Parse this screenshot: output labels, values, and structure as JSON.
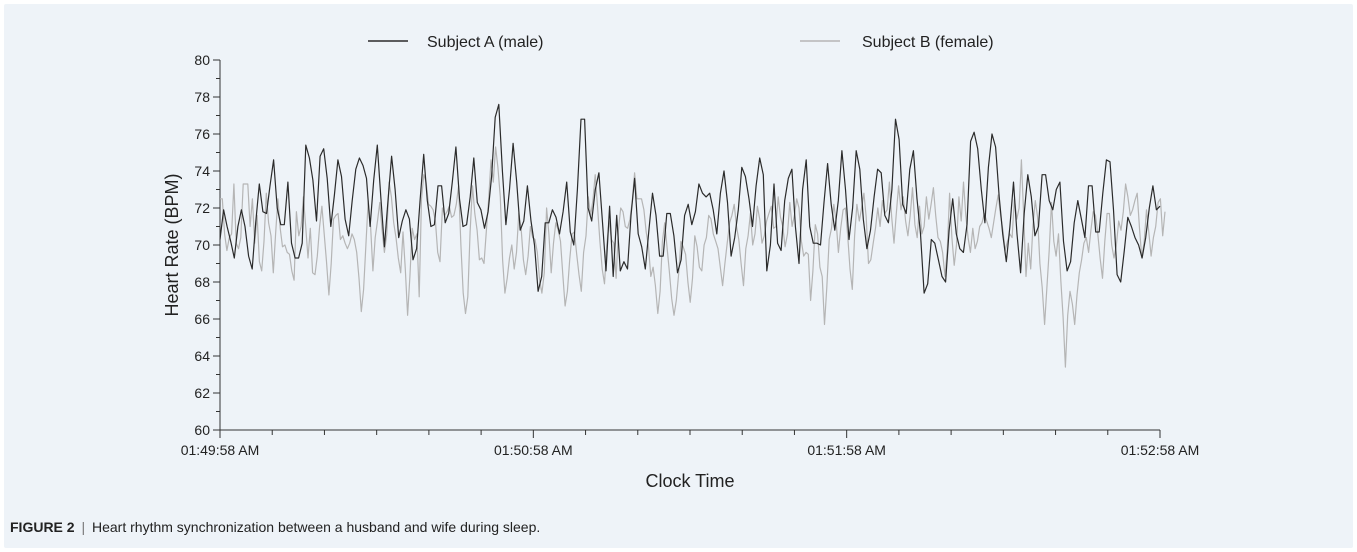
{
  "caption": {
    "label": "FIGURE 2",
    "separator": "|",
    "text": "Heart rhythm synchronization between a husband and wife during sleep."
  },
  "chart_data": {
    "type": "line",
    "title": "",
    "xlabel": "Clock Time",
    "ylabel": "Heart Rate (BPM)",
    "ylim": [
      60,
      80
    ],
    "yticks": [
      60,
      62,
      64,
      66,
      68,
      70,
      72,
      74,
      76,
      78,
      80
    ],
    "xlim_seconds_labels": [
      "01:49:58 AM",
      "01:52:58 AM"
    ],
    "xticks": [
      "01:49:58 AM",
      "01:50:58 AM",
      "01:51:58 AM",
      "01:52:58 AM"
    ],
    "grid": false,
    "legend": "top",
    "series": [
      {
        "name": "Subject A (male)",
        "color": "#2b2b2b",
        "values": [
          70.3,
          71.9,
          71.0,
          70.2,
          69.3,
          71.0,
          71.9,
          71.0,
          69.4,
          68.7,
          71.2,
          73.3,
          71.8,
          71.7,
          73.2,
          74.6,
          72.0,
          71.1,
          71.1,
          73.4,
          70.1,
          69.3,
          69.3,
          70.1,
          75.4,
          74.7,
          73.5,
          71.3,
          74.8,
          75.2,
          73.6,
          71.0,
          72.7,
          74.6,
          73.7,
          71.4,
          70.5,
          72.4,
          74.1,
          74.7,
          74.3,
          73.6,
          71.0,
          73.5,
          75.4,
          72.6,
          69.9,
          72.4,
          74.8,
          73.0,
          70.4,
          71.3,
          71.9,
          71.4,
          69.2,
          69.8,
          72.5,
          74.9,
          72.4,
          71.0,
          71.1,
          73.2,
          73.2,
          71.2,
          71.7,
          73.4,
          75.3,
          72.5,
          71.0,
          71.1,
          72.6,
          74.7,
          72.3,
          71.9,
          70.9,
          71.8,
          73.7,
          76.9,
          77.6,
          74.0,
          71.1,
          73.0,
          75.5,
          73.4,
          70.8,
          71.3,
          73.2,
          71.3,
          70.0,
          67.5,
          68.3,
          71.2,
          71.2,
          71.9,
          71.5,
          70.6,
          71.8,
          73.4,
          70.7,
          70.0,
          73.0,
          76.8,
          76.8,
          72.0,
          71.3,
          73.0,
          73.9,
          71.3,
          68.6,
          72.1,
          68.3,
          71.6,
          68.6,
          69.1,
          68.7,
          71.6,
          73.6,
          70.6,
          69.9,
          68.7,
          70.8,
          72.8,
          71.6,
          69.4,
          69.4,
          71.7,
          71.7,
          70.5,
          68.5,
          69.2,
          71.6,
          72.2,
          71.1,
          71.8,
          73.3,
          72.8,
          72.6,
          72.8,
          71.9,
          70.6,
          72.8,
          74.0,
          72.3,
          69.4,
          70.4,
          71.9,
          74.2,
          73.7,
          72.5,
          71.0,
          73.2,
          74.7,
          73.8,
          68.6,
          70.0,
          73.3,
          70.1,
          69.7,
          72.4,
          73.6,
          74.1,
          71.0,
          69.0,
          73.0,
          74.6,
          71.0,
          70.1,
          70.1,
          70.0,
          72.3,
          74.4,
          72.2,
          70.8,
          72.4,
          75.1,
          73.0,
          70.3,
          72.0,
          75.1,
          74.1,
          71.4,
          69.8,
          70.8,
          72.6,
          74.1,
          73.9,
          71.6,
          71.2,
          73.0,
          76.8,
          75.7,
          72.2,
          71.7,
          74.1,
          75.1,
          72.5,
          70.6,
          67.4,
          67.9,
          70.3,
          70.1,
          69.2,
          68.3,
          68.0,
          70.8,
          72.5,
          70.6,
          69.8,
          69.6,
          71.1,
          75.6,
          76.1,
          75.2,
          73.0,
          71.2,
          74.2,
          76.0,
          75.3,
          72.6,
          70.6,
          69.1,
          71.0,
          73.4,
          70.6,
          68.5,
          71.7,
          73.8,
          72.6,
          70.5,
          71.0,
          73.8,
          73.8,
          72.4,
          71.9,
          73.0,
          73.4,
          70.2,
          68.6,
          69.1,
          71.2,
          72.4,
          71.4,
          70.4,
          73.2,
          73.2,
          70.7,
          70.7,
          72.8,
          74.6,
          74.5,
          71.9,
          68.4,
          68.0,
          69.7,
          71.5,
          71.0,
          70.4,
          70.0,
          69.3,
          70.4,
          72.0,
          73.2,
          71.9,
          72.1
        ]
      },
      {
        "name": "Subject B (female)",
        "color": "#b5b5b5",
        "values": [
          72.5,
          72.5,
          70.6,
          69.7,
          70.4,
          70.6,
          73.3,
          70.1,
          69.8,
          70.4,
          73.3,
          73.3,
          73.3,
          71.0,
          72.5,
          70.1,
          71.6,
          69.1,
          68.6,
          70.2,
          72.8,
          71.2,
          70.5,
          68.5,
          70.6,
          72.5,
          70.9,
          69.9,
          70.0,
          69.6,
          69.5,
          68.6,
          68.1,
          71.8,
          70.5,
          71.0,
          72.6,
          71.0,
          69.3,
          70.9,
          68.5,
          68.4,
          69.4,
          71.0,
          72.1,
          70.6,
          69.1,
          67.3,
          69.0,
          71.4,
          71.6,
          71.7,
          70.3,
          70.5,
          70.1,
          69.8,
          70.1,
          70.6,
          70.3,
          69.6,
          68.2,
          66.4,
          67.6,
          70.0,
          72.4,
          71.0,
          68.6,
          70.4,
          71.3,
          72.3,
          70.8,
          69.6,
          70.6,
          73.4,
          72.6,
          71.2,
          70.4,
          69.3,
          68.5,
          70.7,
          68.7,
          66.2,
          68.3,
          70.9,
          70.3,
          70.6,
          67.2,
          72.5,
          73.8,
          73.4,
          72.2,
          72.1,
          71.9,
          71.3,
          69.6,
          69.1,
          72.0,
          71.6,
          71.8,
          72.1,
          71.5,
          71.6,
          72.2,
          73.2,
          70.0,
          67.4,
          66.3,
          67.2,
          70.7,
          73.2,
          71.7,
          70.8,
          69.2,
          69.3,
          69.0,
          70.8,
          72.5,
          74.6,
          73.4,
          75.3,
          74.2,
          72.6,
          69.2,
          67.4,
          68.2,
          69.3,
          70.0,
          68.7,
          69.6,
          71.7,
          70.9,
          69.2,
          68.4,
          69.4,
          71.0,
          70.4,
          70.3,
          69.6,
          68.1,
          67.4,
          68.5,
          72.0,
          70.6,
          68.5,
          70.1,
          71.2,
          70.8,
          70.2,
          68.4,
          66.7,
          67.5,
          69.2,
          70.6,
          70.7,
          69.5,
          68.4,
          67.5,
          69.6,
          70.5,
          72.6,
          71.6,
          72.4,
          73.8,
          72.1,
          70.2,
          68.7,
          67.9,
          70.0,
          71.3,
          70.3,
          70.1,
          68.2,
          70.8,
          72.0,
          71.8,
          71.0,
          70.9,
          71.4,
          72.4,
          73.9,
          72.5,
          72.5,
          72.5,
          71.9,
          70.7,
          69.9,
          68.3,
          68.8,
          67.8,
          66.3,
          67.5,
          70.2,
          71.2,
          69.9,
          68.6,
          67.1,
          66.2,
          67.0,
          68.4,
          70.2,
          69.9,
          69.5,
          68.0,
          66.9,
          68.2,
          70.5,
          69.9,
          68.8,
          68.6,
          70.0,
          70.4,
          71.6,
          71.4,
          70.6,
          70.2,
          69.8,
          68.8,
          67.8,
          69.0,
          70.1,
          71.2,
          71.6,
          72.2,
          71.0,
          70.3,
          69.0,
          67.8,
          69.8,
          70.5,
          71.7,
          70.0,
          70.6,
          72.1,
          71.4,
          70.1,
          70.5,
          71.3,
          71.7,
          72.1,
          70.9,
          71.0,
          72.6,
          71.5,
          71.0,
          69.9,
          70.6,
          72.3,
          71.0,
          71.6,
          72.5,
          72.0,
          70.2,
          69.4,
          69.6,
          69.5,
          67.0,
          68.6,
          71.1,
          70.6,
          68.8,
          68.3,
          65.7,
          67.7,
          70.3,
          70.9,
          72.2,
          71.3,
          69.6,
          70.9,
          71.9,
          72.0,
          70.5,
          68.7,
          67.6,
          70.5,
          72.2,
          71.3,
          72.0,
          72.8,
          71.5,
          69.0,
          69.2,
          70.1,
          70.9,
          72.0,
          71.0,
          72.4,
          71.7,
          71.9,
          73.4,
          71.5,
          70.1,
          71.7,
          73.2,
          71.9,
          72.6,
          71.3,
          70.5,
          71.6,
          73.1,
          71.1,
          70.4,
          72.1,
          70.6,
          71.0,
          72.6,
          71.4,
          72.2,
          73.1,
          71.6,
          70.4,
          70.2,
          69.6,
          68.3,
          69.8,
          72.8,
          70.4,
          68.9,
          70.0,
          72.6,
          71.3,
          73.4,
          71.6,
          70.4,
          69.6,
          70.9,
          69.8,
          70.2,
          71.0,
          71.2,
          71.7,
          71.3,
          70.9,
          70.4,
          71.2,
          72.0,
          72.7,
          71.6,
          70.8,
          69.7,
          70.2,
          70.6,
          70.4,
          72.5,
          71.4,
          72.0,
          74.6,
          71.6,
          68.3,
          70.1,
          68.7,
          71.1,
          72.4,
          71.5,
          69.0,
          67.7,
          65.7,
          67.7,
          69.7,
          72.3,
          70.2,
          69.4,
          70.6,
          68.1,
          66.1,
          63.4,
          66.2,
          67.5,
          66.8,
          65.7,
          67.3,
          68.5,
          69.2,
          70.1,
          70.4,
          69.6,
          70.8,
          71.8,
          71.6,
          70.6,
          69.3,
          68.2,
          70.2,
          71.7,
          71.7,
          70.0,
          69.3,
          70.0,
          71.3,
          70.8,
          71.8,
          73.3,
          72.6,
          71.6,
          71.9,
          72.4,
          72.8,
          70.9,
          69.3,
          70.2,
          71.9,
          70.7,
          69.4,
          70.4,
          71.0,
          72.3,
          72.5,
          70.5,
          71.8
        ]
      }
    ]
  }
}
